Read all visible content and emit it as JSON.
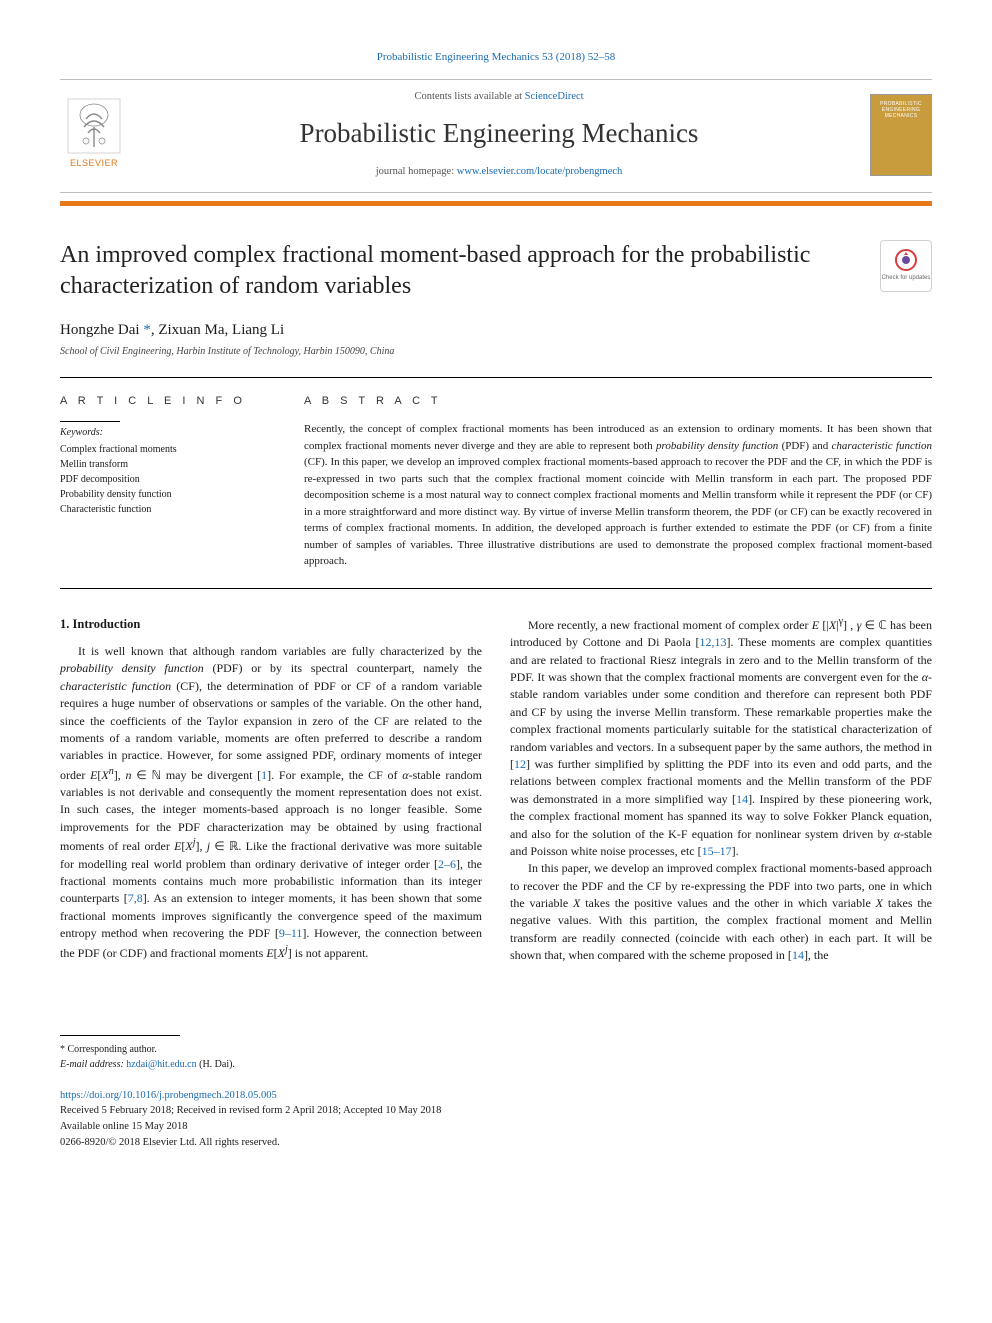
{
  "citation": "Probabilistic Engineering Mechanics 53 (2018) 52–58",
  "header": {
    "contents_prefix": "Contents lists available at ",
    "contents_link": "ScienceDirect",
    "journal_name": "Probabilistic Engineering Mechanics",
    "homepage_prefix": "journal homepage: ",
    "homepage_link": "www.elsevier.com/locate/probengmech",
    "publisher_logo_text": "ELSEVIER",
    "cover_text": "PROBABILISTIC ENGINEERING MECHANICS"
  },
  "title": "An improved complex fractional moment-based approach for the probabilistic characterization of random variables",
  "check_updates_label": "Check for updates",
  "authors_html": "Hongzhe Dai <span class='corr'>*</span>, Zixuan Ma, Liang Li",
  "affiliation": "School of Civil Engineering, Harbin Institute of Technology, Harbin 150090, China",
  "article_info": {
    "label": "A R T I C L E   I N F O",
    "keywords_head": "Keywords:",
    "keywords": [
      "Complex fractional moments",
      "Mellin transform",
      "PDF decomposition",
      "Probability density function",
      "Characteristic function"
    ]
  },
  "abstract": {
    "label": "A B S T R A C T",
    "text": "Recently, the concept of complex fractional moments has been introduced as an extension to ordinary moments. It has been shown that complex fractional moments never diverge and they are able to represent both probability density function (PDF) and characteristic function (CF). In this paper, we develop an improved complex fractional moments-based approach to recover the PDF and the CF, in which the PDF is re-expressed in two parts such that the complex fractional moment coincide with Mellin transform in each part. The proposed PDF decomposition scheme is a most natural way to connect complex fractional moments and Mellin transform while it represent the PDF (or CF) in a more straightforward and more distinct way. By virtue of inverse Mellin transform theorem, the PDF (or CF) can be exactly recovered in terms of complex fractional moments. In addition, the developed approach is further extended to estimate the PDF (or CF) from a finite number of samples of variables. Three illustrative distributions are used to demonstrate the proposed complex fractional moment-based approach."
  },
  "body": {
    "section_heading": "1. Introduction",
    "p1_html": "It is well known that although random variables are fully characterized by the <i>probability density function</i> (PDF) or by its spectral counterpart, namely the <i>characteristic function</i> (CF), the determination of PDF or CF of a random variable requires a huge number of observations or samples of the variable. On the other hand, since the coefficients of the Taylor expansion in zero of the CF are related to the moments of a random variable, moments are often preferred to describe a random variables in practice. However, for some assigned PDF, ordinary moments of integer order <i>E</i>[<i>X<sup>n</sup></i>], <i>n</i> ∈ ℕ may be divergent [<span class='ref'>1</span>]. For example, the CF of <i>α</i>-stable random variables is not derivable and consequently the moment representation does not exist. In such cases, the integer moments-based approach is no longer feasible. Some improvements for the PDF characterization may be obtained by using fractional moments of real order <i>E</i>[<i>X<sup>j</sup></i>], <i>j</i> ∈ ℝ. Like the fractional derivative was more suitable for modelling real world problem than ordinary derivative of integer order [<span class='ref'>2–6</span>], the fractional moments contains much more probabilistic information than its integer counterparts [<span class='ref'>7,8</span>]. As an extension to integer moments, it has been shown that some fractional moments improves significantly the convergence speed of the maximum entropy method when recovering the PDF [<span class='ref'>9–11</span>]. However, the connection between the PDF (or CDF) and fractional moments <i>E</i>[<i>X<sup>j</sup></i>] is not apparent.",
    "p2_html": "More recently, a new fractional moment of complex order <i>E</i> [|<i>X</i>|<sup>γ</sup>] , <i>γ</i> ∈ ℂ has been introduced by Cottone and Di Paola [<span class='ref'>12,13</span>]. These moments are complex quantities and are related to fractional Riesz integrals in zero and to the Mellin transform of the PDF. It was shown that the complex fractional moments are convergent even for the <i>α</i>-stable random variables under some condition and therefore can represent both PDF and CF by using the inverse Mellin transform. These remarkable properties make the complex fractional moments particularly suitable for the statistical characterization of random variables and vectors. In a subsequent paper by the same authors, the method in [<span class='ref'>12</span>] was further simplified by splitting the PDF into its even and odd parts, and the relations between complex fractional moments and the Mellin transform of the PDF was demonstrated in a more simplified way [<span class='ref'>14</span>]. Inspired by these pioneering work, the complex fractional moment has spanned its way to solve Fokker Planck equation, and also for the solution of the K-F equation for nonlinear system driven by <i>α</i>-stable and Poisson white noise processes, etc [<span class='ref'>15–17</span>].",
    "p3_html": "In this paper, we develop an improved complex fractional moments-based approach to recover the PDF and the CF by re-expressing the PDF into two parts, one in which the variable <i>X</i> takes the positive values and the other in which variable <i>X</i> takes the negative values. With this partition, the complex fractional moment and Mellin transform are readily connected (coincide with each other) in each part. It will be shown that, when compared with the scheme proposed in [<span class='ref'>14</span>], the"
  },
  "footnote": {
    "corr_label": "* Corresponding author.",
    "email_label": "E-mail address:",
    "email": "hzdai@hit.edu.cn",
    "email_owner": "(H. Dai)."
  },
  "doi": {
    "link": "https://doi.org/10.1016/j.probengmech.2018.05.005",
    "history": "Received 5 February 2018; Received in revised form 2 April 2018; Accepted 10 May 2018",
    "available": "Available online 15 May 2018",
    "copyright": "0266-8920/© 2018 Elsevier Ltd. All rights reserved."
  },
  "colors": {
    "accent_orange": "#e67817",
    "link_blue": "#1a6bb3",
    "cover_bg": "#c89b3c"
  }
}
